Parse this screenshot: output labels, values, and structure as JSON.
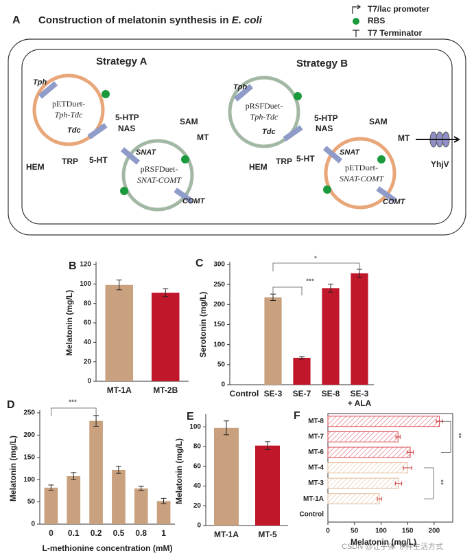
{
  "panel_a": {
    "letter": "A",
    "title": "Construction of melatonin synthesis in ",
    "title_italic": "E. coli",
    "legend": [
      "T7/lac promoter",
      "RBS",
      "T7 Terminator"
    ],
    "strategy_a": {
      "name": "Strategy A",
      "plasmid_1": {
        "line1": "pETDuet-",
        "line2": "Tph-Tdc",
        "genes": [
          "Tph",
          "Tdc"
        ]
      },
      "plasmid_2": {
        "line1": "pRSFDuet-",
        "line2": "SNAT-COMT",
        "genes": [
          "SNAT",
          "COMT"
        ]
      },
      "metabolites": [
        "5-HTP",
        "SAM",
        "NAS",
        "MT",
        "TRP",
        "5-HT",
        "HEM"
      ]
    },
    "strategy_b": {
      "name": "Strategy B",
      "plasmid_1": {
        "line1": "pRSFDuet-",
        "line2": "Tph-Tdc",
        "genes": [
          "Tph",
          "Tdc"
        ]
      },
      "plasmid_2": {
        "line1": "pETDuet-",
        "line2": "SNAT-COMT",
        "genes": [
          "SNAT",
          "COMT"
        ]
      },
      "metabolites": [
        "5-HTP",
        "SAM",
        "NAS",
        "MT",
        "TRP",
        "5-HT",
        "HEM"
      ],
      "transporter": "YhjV"
    }
  },
  "chart_data": [
    {
      "type": "bar",
      "panel": "B",
      "y_label": "Melatonin (mg/L)",
      "categories": [
        "MT-1A",
        "MT-2B"
      ],
      "values": [
        99,
        91
      ],
      "errors": [
        5,
        4
      ],
      "colors": [
        "#c9a17f",
        "#c0172b"
      ],
      "ylim": [
        0,
        120
      ],
      "yticks": [
        0,
        20,
        40,
        60,
        80,
        100,
        120
      ],
      "annotations": []
    },
    {
      "type": "bar",
      "panel": "C",
      "y_label": "Serotonin (mg/L)",
      "categories": [
        "Control",
        "SE-3",
        "SE-7",
        "SE-8",
        "SE-3\n+ ALA"
      ],
      "values": [
        0,
        218,
        67,
        241,
        278
      ],
      "errors": [
        0,
        8,
        3,
        10,
        10
      ],
      "colors": [
        "#c9a17f",
        "#c9a17f",
        "#c0172b",
        "#c0172b",
        "#c0172b"
      ],
      "ylim": [
        0,
        300
      ],
      "yticks": [
        0,
        50,
        100,
        150,
        200,
        250,
        300
      ],
      "annotations": [
        "***",
        "*"
      ]
    },
    {
      "type": "bar",
      "panel": "D",
      "y_label": "Melatonin (mg/L)",
      "x_label": "L-methionine concentration (mM)",
      "categories": [
        "0",
        "0.1",
        "0.2",
        "0.5",
        "0.8",
        "1"
      ],
      "values": [
        82,
        108,
        232,
        122,
        80,
        52
      ],
      "errors": [
        6,
        8,
        12,
        8,
        5,
        6
      ],
      "colors": [
        "#c9a17f",
        "#c9a17f",
        "#c9a17f",
        "#c9a17f",
        "#c9a17f",
        "#c9a17f"
      ],
      "ylim": [
        0,
        250
      ],
      "yticks": [
        0,
        50,
        100,
        150,
        200,
        250
      ],
      "annotations": [
        "***"
      ]
    },
    {
      "type": "bar",
      "panel": "E",
      "y_label": "Melatonin (mg/L)",
      "categories": [
        "MT-1A",
        "MT-5"
      ],
      "values": [
        99,
        81
      ],
      "errors": [
        7,
        4
      ],
      "colors": [
        "#c9a17f",
        "#c0172b"
      ],
      "ylim": [
        0,
        110
      ],
      "yticks": [
        0,
        20,
        40,
        60,
        80,
        100
      ],
      "annotations": []
    },
    {
      "type": "barh",
      "panel": "F",
      "x_label": "Melatonin (mg/L)",
      "hatch": true,
      "categories": [
        "MT-8",
        "MT-7",
        "MT-6",
        "MT-4",
        "MT-3",
        "MT-1A",
        "Control"
      ],
      "values": [
        210,
        132,
        155,
        150,
        133,
        97,
        0
      ],
      "errors": [
        6,
        4,
        6,
        8,
        6,
        4,
        0
      ],
      "colors": [
        "#d9414e",
        "#d9414e",
        "#d9414e",
        "#e0b896",
        "#e0b896",
        "#e0b896",
        "#e0b896"
      ],
      "xlim": [
        0,
        235
      ],
      "xticks": [
        0,
        50,
        100,
        150,
        200
      ],
      "annotations": [
        "**",
        "**"
      ]
    }
  ],
  "watermark": "CSDN @让子弹飞-种生活方式"
}
